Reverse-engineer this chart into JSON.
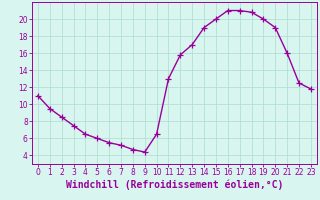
{
  "x": [
    0,
    1,
    2,
    3,
    4,
    5,
    6,
    7,
    8,
    9,
    10,
    11,
    12,
    13,
    14,
    15,
    16,
    17,
    18,
    19,
    20,
    21,
    22,
    23
  ],
  "y": [
    11.0,
    9.5,
    8.5,
    7.5,
    6.5,
    6.0,
    5.5,
    5.2,
    4.7,
    4.4,
    6.5,
    13.0,
    15.8,
    17.0,
    19.0,
    20.0,
    21.0,
    21.0,
    20.8,
    20.0,
    19.0,
    16.0,
    12.5,
    11.8
  ],
  "line_color": "#990099",
  "marker": "+",
  "markersize": 4,
  "linewidth": 1.0,
  "bg_color": "#d8f5f0",
  "grid_color": "#aaddcc",
  "xlabel": "Windchill (Refroidissement éolien,°C)",
  "xlabel_color": "#990099",
  "xlim": [
    -0.5,
    23.5
  ],
  "ylim": [
    3,
    22
  ],
  "yticks": [
    4,
    6,
    8,
    10,
    12,
    14,
    16,
    18,
    20
  ],
  "xticks": [
    0,
    1,
    2,
    3,
    4,
    5,
    6,
    7,
    8,
    9,
    10,
    11,
    12,
    13,
    14,
    15,
    16,
    17,
    18,
    19,
    20,
    21,
    22,
    23
  ],
  "tick_color": "#990099",
  "tick_fontsize": 5.5,
  "xlabel_fontsize": 7.0,
  "spine_color": "#990099"
}
